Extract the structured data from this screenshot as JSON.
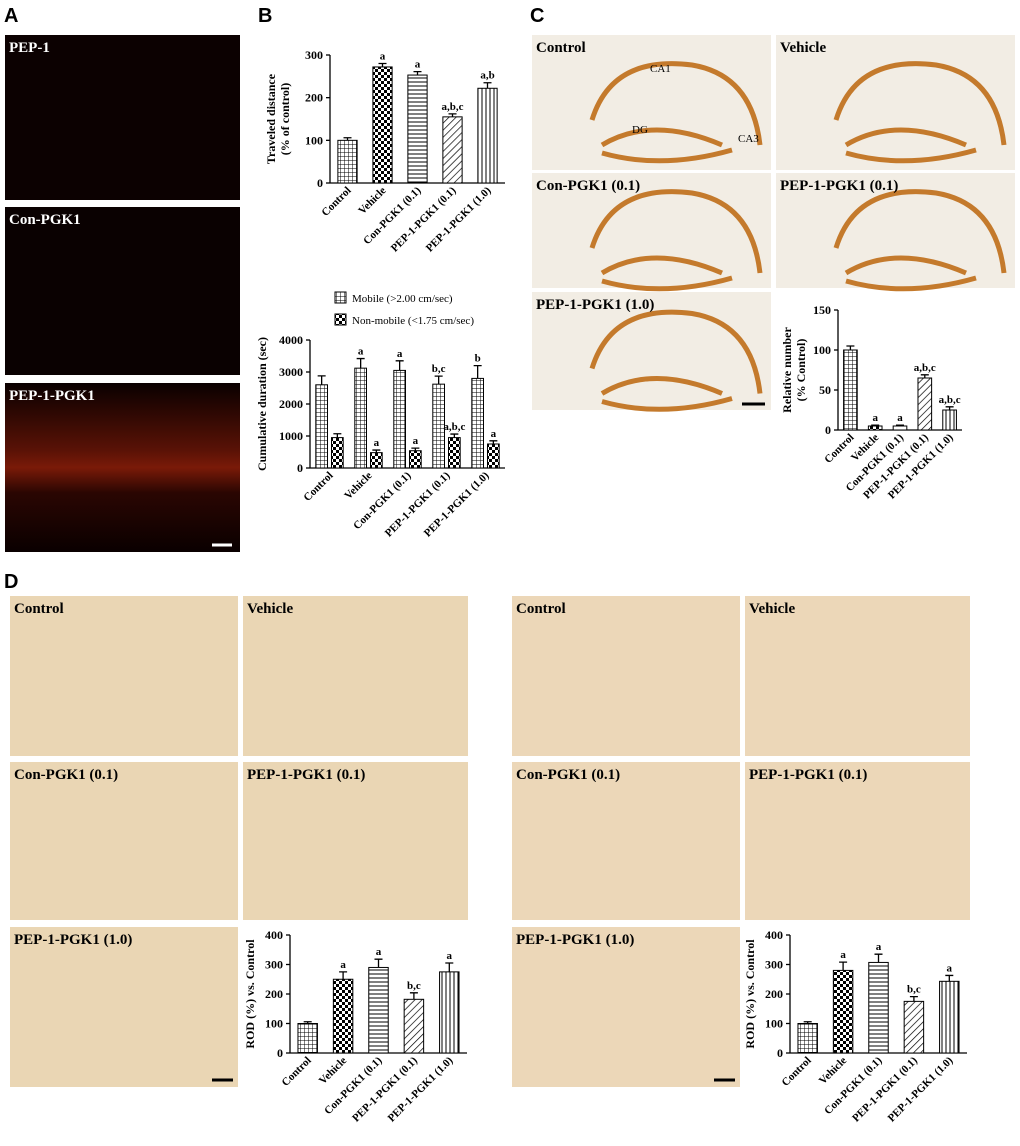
{
  "panels": {
    "A": {
      "label": "A",
      "images": [
        "PEP-1",
        "Con-PGK1",
        "PEP-1-PGK1"
      ]
    },
    "B": {
      "label": "B"
    },
    "C": {
      "label": "C",
      "images": [
        "Control",
        "Vehicle",
        "Con-PGK1 (0.1)",
        "PEP-1-PGK1 (0.1)",
        "PEP-1-PGK1 (1.0)"
      ],
      "regions": [
        "CA1",
        "DG",
        "CA3"
      ]
    },
    "D": {
      "label": "D",
      "left_images": [
        "Control",
        "Vehicle",
        "Con-PGK1 (0.1)",
        "PEP-1-PGK1 (0.1)",
        "PEP-1-PGK1 (1.0)"
      ],
      "right_images": [
        "Control",
        "Vehicle",
        "Con-PGK1 (0.1)",
        "PEP-1-PGK1 (0.1)",
        "PEP-1-PGK1 (1.0)"
      ]
    }
  },
  "chart_data": [
    {
      "type": "bar",
      "ylabel": [
        "Traveled distance",
        "(% of control)"
      ],
      "categories": [
        "Control",
        "Vehicle",
        "Con-PGK1 (0.1)",
        "PEP-1-PGK1 (0.1)",
        "PEP-1-PGK1 (1.0)"
      ],
      "values": [
        100,
        272,
        253,
        155,
        222
      ],
      "errors": [
        6,
        8,
        8,
        7,
        13
      ],
      "annotations": [
        null,
        "a",
        "a",
        "a,b,c",
        "a,b"
      ],
      "ylim": [
        0,
        300
      ],
      "yticks": [
        0,
        100,
        200,
        300
      ]
    },
    {
      "type": "grouped-bar",
      "ylabel": [
        "Cumulative duration (sec)"
      ],
      "categories": [
        "Control",
        "Vehicle",
        "Con-PGK1 (0.1)",
        "PEP-1-PGK1 (0.1)",
        "PEP-1-PGK1 (1.0)"
      ],
      "series": [
        {
          "name": "Mobile (>2.00 cm/sec)",
          "values": [
            2600,
            3120,
            3050,
            2620,
            2800
          ],
          "errors": [
            280,
            300,
            300,
            250,
            400
          ],
          "annotations": [
            null,
            "a",
            "a",
            "b,c",
            "b"
          ]
        },
        {
          "name": "Non-mobile (<1.75 cm/sec)",
          "values": [
            950,
            480,
            540,
            950,
            750
          ],
          "errors": [
            120,
            80,
            80,
            110,
            100
          ],
          "annotations": [
            null,
            "a",
            "a",
            "a,b,c",
            "a"
          ]
        }
      ],
      "ylim": [
        0,
        4000
      ],
      "yticks": [
        0,
        1000,
        2000,
        3000,
        4000
      ],
      "legend": "top-left"
    },
    {
      "type": "bar",
      "ylabel": [
        "Relative number",
        "(% Control)"
      ],
      "categories": [
        "Control",
        "Vehicle",
        "Con-PGK1 (0.1)",
        "PEP-1-PGK1 (0.1)",
        "PEP-1-PGK1 (1.0)"
      ],
      "values": [
        100,
        5,
        5,
        65,
        25
      ],
      "errors": [
        5,
        1,
        1,
        4,
        4
      ],
      "annotations": [
        null,
        "a",
        "a",
        "a,b,c",
        "a,b,c"
      ],
      "ylim": [
        0,
        150
      ],
      "yticks": [
        0,
        50,
        100,
        150
      ]
    },
    {
      "type": "bar",
      "ylabel": [
        "ROD (%) vs. Control"
      ],
      "categories": [
        "Control",
        "Vehicle",
        "Con-PGK1 (0.1)",
        "PEP-1-PGK1 (0.1)",
        "PEP-1-PGK1 (1.0)"
      ],
      "values": [
        100,
        250,
        290,
        182,
        275
      ],
      "errors": [
        6,
        25,
        28,
        22,
        30
      ],
      "annotations": [
        null,
        "a",
        "a",
        "b,c",
        "a"
      ],
      "ylim": [
        0,
        400
      ],
      "yticks": [
        0,
        100,
        200,
        300,
        400
      ]
    },
    {
      "type": "bar",
      "ylabel": [
        "ROD (%) vs. Control"
      ],
      "categories": [
        "Control",
        "Vehicle",
        "Con-PGK1 (0.1)",
        "PEP-1-PGK1 (0.1)",
        "PEP-1-PGK1 (1.0)"
      ],
      "values": [
        100,
        280,
        307,
        175,
        243
      ],
      "errors": [
        6,
        28,
        28,
        16,
        20
      ],
      "annotations": [
        null,
        "a",
        "a",
        "b,c",
        "a"
      ],
      "ylim": [
        0,
        400
      ],
      "yticks": [
        0,
        100,
        200,
        300,
        400
      ]
    }
  ]
}
